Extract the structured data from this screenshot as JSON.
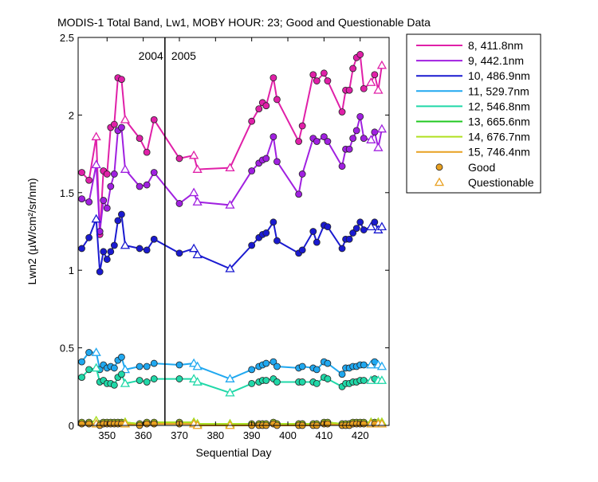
{
  "chart_data": {
    "type": "line",
    "title": "MODIS-1 Total Band, Lw1, MOBY HOUR: 23;  Good and Questionable Data",
    "xlabel": "Sequential Day",
    "ylabel": "Lwn2 (µW/cm²/sr/nm)",
    "xlim": [
      342,
      428
    ],
    "ylim": [
      0,
      2.5
    ],
    "xticks": [
      "350",
      "360",
      "370",
      "380",
      "390",
      "400",
      "410",
      "420"
    ],
    "yticks": [
      "0",
      "0.5",
      "1",
      "1.5",
      "2",
      "2.5"
    ],
    "year_divider": {
      "x": 366,
      "left_label": "2004",
      "right_label": "2005"
    },
    "grid": false,
    "legend_position": "outside-right",
    "legend": {
      "good_label": "Good",
      "questionable_label": "Questionable"
    },
    "series": [
      {
        "name": "8, 411.8nm",
        "color": "#e020a8",
        "x": [
          343,
          345,
          347,
          348,
          349,
          350,
          351,
          352,
          353,
          354,
          355,
          359,
          361,
          363,
          370,
          374,
          375,
          384,
          390,
          392,
          393,
          394,
          396,
          397,
          403,
          404,
          407,
          408,
          410,
          411,
          415,
          416,
          417,
          418,
          419,
          420,
          421,
          423,
          424,
          425,
          426
        ],
        "y": [
          1.63,
          1.58,
          1.86,
          1.23,
          1.64,
          1.62,
          1.92,
          1.94,
          2.24,
          2.23,
          1.97,
          1.85,
          1.76,
          1.97,
          1.72,
          1.74,
          1.65,
          1.66,
          1.96,
          2.04,
          2.08,
          2.06,
          2.24,
          2.1,
          1.83,
          1.93,
          2.26,
          2.22,
          2.27,
          2.22,
          2.02,
          2.16,
          2.16,
          2.3,
          2.37,
          2.39,
          2.17,
          2.21,
          2.26,
          2.16,
          2.32
        ],
        "flags": [
          "G",
          "G",
          "Q",
          "G",
          "G",
          "G",
          "G",
          "G",
          "G",
          "G",
          "Q",
          "G",
          "G",
          "G",
          "G",
          "Q",
          "Q",
          "Q",
          "G",
          "G",
          "G",
          "G",
          "G",
          "G",
          "G",
          "G",
          "G",
          "G",
          "G",
          "G",
          "G",
          "G",
          "G",
          "G",
          "G",
          "G",
          "G",
          "Q",
          "G",
          "Q",
          "Q"
        ]
      },
      {
        "name": "9, 442.1nm",
        "color": "#a020e0",
        "x": [
          343,
          345,
          347,
          348,
          349,
          350,
          351,
          352,
          353,
          354,
          355,
          359,
          361,
          363,
          370,
          374,
          375,
          384,
          390,
          392,
          393,
          394,
          396,
          397,
          403,
          404,
          407,
          408,
          410,
          411,
          415,
          416,
          417,
          418,
          419,
          420,
          421,
          423,
          424,
          425,
          426
        ],
        "y": [
          1.46,
          1.44,
          1.68,
          1.25,
          1.45,
          1.4,
          1.54,
          1.62,
          1.9,
          1.92,
          1.65,
          1.54,
          1.55,
          1.63,
          1.43,
          1.5,
          1.44,
          1.42,
          1.64,
          1.69,
          1.71,
          1.72,
          1.86,
          1.7,
          1.49,
          1.62,
          1.85,
          1.83,
          1.86,
          1.83,
          1.67,
          1.78,
          1.78,
          1.85,
          1.9,
          1.99,
          1.85,
          1.84,
          1.89,
          1.79,
          1.91
        ],
        "flags": [
          "G",
          "G",
          "Q",
          "G",
          "G",
          "G",
          "G",
          "G",
          "G",
          "G",
          "Q",
          "G",
          "G",
          "G",
          "G",
          "Q",
          "Q",
          "Q",
          "G",
          "G",
          "G",
          "G",
          "G",
          "G",
          "G",
          "G",
          "G",
          "G",
          "G",
          "G",
          "G",
          "G",
          "G",
          "G",
          "G",
          "G",
          "G",
          "Q",
          "G",
          "Q",
          "Q"
        ]
      },
      {
        "name": "10, 486.9nm",
        "color": "#1a1ad0",
        "x": [
          343,
          345,
          347,
          348,
          349,
          350,
          351,
          352,
          353,
          354,
          355,
          359,
          361,
          363,
          370,
          374,
          375,
          384,
          390,
          392,
          393,
          394,
          396,
          397,
          403,
          404,
          407,
          408,
          410,
          411,
          415,
          416,
          417,
          418,
          419,
          420,
          421,
          423,
          424,
          425,
          426
        ],
        "y": [
          1.14,
          1.21,
          1.33,
          0.99,
          1.12,
          1.07,
          1.12,
          1.16,
          1.32,
          1.36,
          1.16,
          1.14,
          1.13,
          1.2,
          1.11,
          1.14,
          1.1,
          1.01,
          1.16,
          1.21,
          1.23,
          1.24,
          1.31,
          1.19,
          1.11,
          1.13,
          1.25,
          1.18,
          1.29,
          1.28,
          1.14,
          1.2,
          1.2,
          1.24,
          1.27,
          1.31,
          1.26,
          1.28,
          1.31,
          1.26,
          1.28
        ],
        "flags": [
          "G",
          "G",
          "Q",
          "G",
          "G",
          "G",
          "G",
          "G",
          "G",
          "G",
          "Q",
          "G",
          "G",
          "G",
          "G",
          "Q",
          "Q",
          "Q",
          "G",
          "G",
          "G",
          "G",
          "G",
          "G",
          "G",
          "G",
          "G",
          "G",
          "G",
          "G",
          "G",
          "G",
          "G",
          "G",
          "G",
          "G",
          "G",
          "Q",
          "G",
          "Q",
          "Q"
        ]
      },
      {
        "name": "11, 529.7nm",
        "color": "#20a8f0",
        "x": [
          343,
          345,
          347,
          348,
          349,
          350,
          351,
          352,
          353,
          354,
          355,
          359,
          361,
          363,
          370,
          374,
          375,
          384,
          390,
          392,
          393,
          394,
          396,
          397,
          403,
          404,
          407,
          408,
          410,
          411,
          415,
          416,
          417,
          418,
          419,
          420,
          421,
          423,
          424,
          425,
          426
        ],
        "y": [
          0.41,
          0.47,
          0.47,
          0.36,
          0.39,
          0.37,
          0.38,
          0.37,
          0.42,
          0.44,
          0.36,
          0.38,
          0.38,
          0.4,
          0.39,
          0.4,
          0.38,
          0.3,
          0.36,
          0.38,
          0.39,
          0.4,
          0.41,
          0.38,
          0.37,
          0.38,
          0.37,
          0.36,
          0.41,
          0.4,
          0.33,
          0.37,
          0.37,
          0.38,
          0.38,
          0.39,
          0.39,
          0.39,
          0.41,
          0.39,
          0.38
        ],
        "flags": [
          "G",
          "G",
          "Q",
          "G",
          "G",
          "G",
          "G",
          "G",
          "G",
          "G",
          "Q",
          "G",
          "G",
          "G",
          "G",
          "Q",
          "Q",
          "Q",
          "G",
          "G",
          "G",
          "G",
          "G",
          "G",
          "G",
          "G",
          "G",
          "G",
          "G",
          "G",
          "G",
          "G",
          "G",
          "G",
          "G",
          "G",
          "G",
          "Q",
          "G",
          "Q",
          "Q"
        ]
      },
      {
        "name": "12, 546.8nm",
        "color": "#20d8a8",
        "x": [
          343,
          345,
          347,
          348,
          349,
          350,
          351,
          352,
          353,
          354,
          355,
          359,
          361,
          363,
          370,
          374,
          375,
          384,
          390,
          392,
          393,
          394,
          396,
          397,
          403,
          404,
          407,
          408,
          410,
          411,
          415,
          416,
          417,
          418,
          419,
          420,
          421,
          423,
          424,
          425,
          426
        ],
        "y": [
          0.31,
          0.36,
          0.37,
          0.28,
          0.29,
          0.27,
          0.27,
          0.26,
          0.31,
          0.33,
          0.27,
          0.29,
          0.28,
          0.3,
          0.3,
          0.3,
          0.28,
          0.21,
          0.27,
          0.28,
          0.29,
          0.29,
          0.3,
          0.28,
          0.28,
          0.28,
          0.28,
          0.27,
          0.31,
          0.3,
          0.25,
          0.27,
          0.27,
          0.28,
          0.28,
          0.29,
          0.29,
          0.29,
          0.3,
          0.29,
          0.29
        ],
        "flags": [
          "G",
          "G",
          "Q",
          "G",
          "G",
          "G",
          "G",
          "G",
          "G",
          "G",
          "Q",
          "G",
          "G",
          "G",
          "G",
          "Q",
          "Q",
          "Q",
          "G",
          "G",
          "G",
          "G",
          "G",
          "G",
          "G",
          "G",
          "G",
          "G",
          "G",
          "G",
          "G",
          "G",
          "G",
          "G",
          "G",
          "G",
          "G",
          "Q",
          "G",
          "Q",
          "Q"
        ]
      },
      {
        "name": "13, 665.6nm",
        "color": "#20c820",
        "x": [
          343,
          345,
          347,
          348,
          349,
          350,
          351,
          352,
          353,
          354,
          355,
          359,
          361,
          363,
          370,
          374,
          375,
          384,
          390,
          392,
          393,
          394,
          396,
          397,
          403,
          404,
          407,
          408,
          410,
          411,
          415,
          416,
          417,
          418,
          419,
          420,
          421,
          423,
          424,
          425,
          426
        ],
        "y": [
          0.02,
          0.02,
          0.03,
          0.01,
          0.02,
          0.02,
          0.02,
          0.02,
          0.02,
          0.02,
          0.02,
          0.01,
          0.02,
          0.02,
          0.02,
          0.02,
          0.01,
          0.01,
          0.01,
          0.01,
          0.01,
          0.01,
          0.02,
          0.01,
          0.01,
          0.01,
          0.01,
          0.01,
          0.02,
          0.02,
          0.01,
          0.01,
          0.01,
          0.02,
          0.02,
          0.02,
          0.02,
          0.02,
          0.02,
          0.02,
          0.02
        ],
        "flags": [
          "G",
          "G",
          "Q",
          "G",
          "G",
          "G",
          "G",
          "G",
          "G",
          "G",
          "Q",
          "G",
          "G",
          "G",
          "G",
          "Q",
          "Q",
          "Q",
          "G",
          "G",
          "G",
          "G",
          "G",
          "G",
          "G",
          "G",
          "G",
          "G",
          "G",
          "G",
          "G",
          "G",
          "G",
          "G",
          "G",
          "G",
          "G",
          "Q",
          "G",
          "Q",
          "Q"
        ]
      },
      {
        "name": "14, 676.7nm",
        "color": "#b0e020",
        "x": [
          343,
          345,
          347,
          348,
          349,
          350,
          351,
          352,
          353,
          354,
          355,
          359,
          361,
          363,
          370,
          374,
          375,
          384,
          390,
          392,
          393,
          394,
          396,
          397,
          403,
          404,
          407,
          408,
          410,
          411,
          415,
          416,
          417,
          418,
          419,
          420,
          421,
          423,
          424,
          425,
          426
        ],
        "y": [
          0.02,
          0.02,
          0.03,
          0.01,
          0.02,
          0.02,
          0.02,
          0.02,
          0.02,
          0.02,
          0.02,
          0.01,
          0.02,
          0.02,
          0.02,
          0.02,
          0.01,
          0.01,
          0.01,
          0.01,
          0.01,
          0.01,
          0.02,
          0.01,
          0.01,
          0.01,
          0.01,
          0.01,
          0.02,
          0.02,
          0.01,
          0.01,
          0.01,
          0.02,
          0.02,
          0.02,
          0.02,
          0.02,
          0.02,
          0.02,
          0.02
        ],
        "flags": [
          "G",
          "G",
          "Q",
          "G",
          "G",
          "G",
          "G",
          "G",
          "G",
          "G",
          "Q",
          "G",
          "G",
          "G",
          "G",
          "Q",
          "Q",
          "Q",
          "G",
          "G",
          "G",
          "G",
          "G",
          "G",
          "G",
          "G",
          "G",
          "G",
          "G",
          "G",
          "G",
          "G",
          "G",
          "G",
          "G",
          "G",
          "G",
          "Q",
          "G",
          "Q",
          "Q"
        ]
      },
      {
        "name": "15, 746.4nm",
        "color": "#e8a020",
        "x": [
          343,
          345,
          347,
          348,
          349,
          350,
          351,
          352,
          353,
          354,
          355,
          359,
          361,
          363,
          370,
          374,
          375,
          384,
          390,
          392,
          393,
          394,
          396,
          397,
          403,
          404,
          407,
          408,
          410,
          411,
          415,
          416,
          417,
          418,
          419,
          420,
          421,
          423,
          424,
          425,
          426
        ],
        "y": [
          0.01,
          0.01,
          0.01,
          0.0,
          0.01,
          0.01,
          0.01,
          0.01,
          0.01,
          0.01,
          0.01,
          0.0,
          0.01,
          0.01,
          0.01,
          0.01,
          0.0,
          0.0,
          0.0,
          0.0,
          0.0,
          0.0,
          0.01,
          0.0,
          0.0,
          0.0,
          0.0,
          0.0,
          0.01,
          0.01,
          0.0,
          0.0,
          0.0,
          0.01,
          0.01,
          0.01,
          0.01,
          0.01,
          0.01,
          0.01,
          0.01
        ],
        "flags": [
          "G",
          "G",
          "Q",
          "G",
          "G",
          "G",
          "G",
          "G",
          "G",
          "G",
          "Q",
          "G",
          "G",
          "G",
          "G",
          "Q",
          "Q",
          "Q",
          "G",
          "G",
          "G",
          "G",
          "G",
          "G",
          "G",
          "G",
          "G",
          "G",
          "G",
          "G",
          "G",
          "G",
          "G",
          "G",
          "G",
          "G",
          "G",
          "Q",
          "G",
          "Q",
          "Q"
        ]
      }
    ]
  }
}
